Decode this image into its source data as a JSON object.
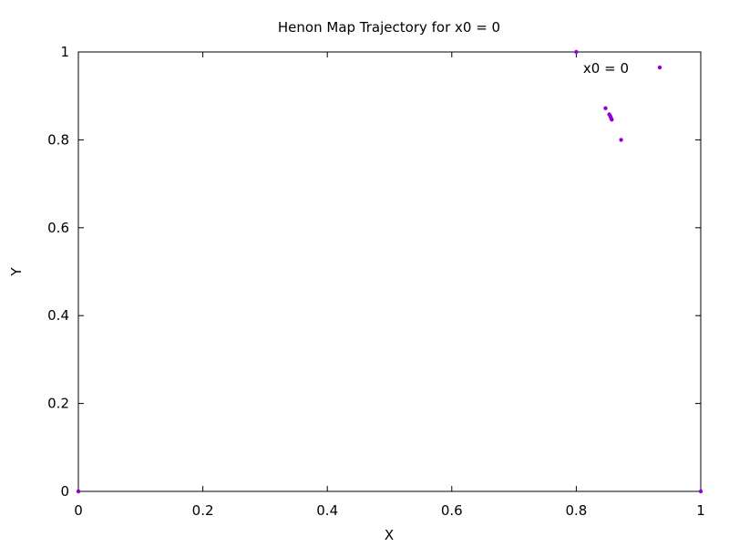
{
  "chart_data": {
    "type": "scatter",
    "title": "Henon Map Trajectory for x0 = 0",
    "xlabel": "X",
    "ylabel": "Y",
    "xlim": [
      0,
      1
    ],
    "ylim": [
      0,
      1
    ],
    "x_ticks": [
      "0",
      "0.2",
      "0.4",
      "0.6",
      "0.8",
      "1"
    ],
    "y_ticks": [
      "0",
      "0.2",
      "0.4",
      "0.6",
      "0.8",
      "1"
    ],
    "grid": false,
    "legend_position": "top-right",
    "series": [
      {
        "name": "x0 = 0",
        "color": "#9400d3",
        "points": [
          {
            "x": 0,
            "y": 0
          },
          {
            "x": 1,
            "y": 0
          },
          {
            "x": 0.8,
            "y": 1
          },
          {
            "x": 0.872,
            "y": 0.8
          },
          {
            "x": 0.847,
            "y": 0.872
          },
          {
            "x": 0.853,
            "y": 0.858
          },
          {
            "x": 0.855,
            "y": 0.853
          },
          {
            "x": 0.856,
            "y": 0.849
          },
          {
            "x": 0.857,
            "y": 0.846
          }
        ]
      }
    ]
  }
}
